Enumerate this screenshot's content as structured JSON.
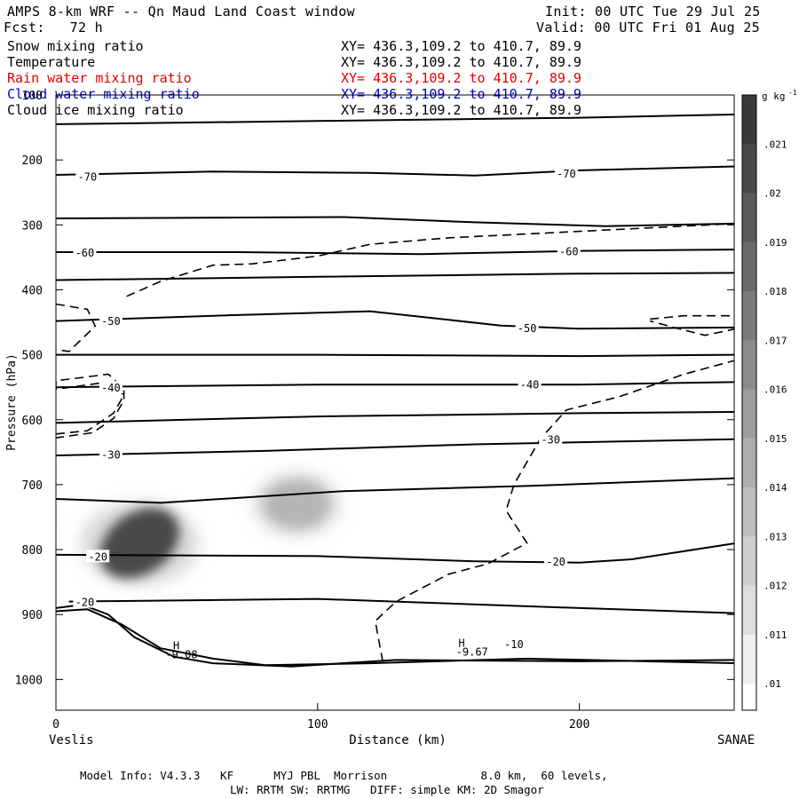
{
  "header": {
    "title": "AMPS 8-km WRF -- Qn Maud Land Coast window",
    "fcst": "Fcst:   72 h",
    "init": "Init: 00 UTC Tue 29 Jul 25",
    "valid": "Valid: 00 UTC Fri 01 Aug 25"
  },
  "fields": [
    {
      "name": "Snow mixing ratio",
      "xy": "XY= 436.3,109.2 to 410.7, 89.9",
      "color": "#000000"
    },
    {
      "name": "Temperature",
      "xy": "XY= 436.3,109.2 to 410.7, 89.9",
      "color": "#000000"
    },
    {
      "name": "Rain water mixing ratio",
      "xy": "XY= 436.3,109.2 to 410.7, 89.9",
      "color": "#e00000"
    },
    {
      "name": "Cloud water mixing ratio",
      "xy": "XY= 436.3,109.2 to 410.7, 89.9",
      "color": "#0000cc"
    },
    {
      "name": "Cloud ice mixing ratio",
      "xy": "XY= 436.3,109.2 to 410.7, 89.9",
      "color": "#000000"
    }
  ],
  "footer": {
    "line1": "Model Info: V4.3.3   KF      MYJ PBL  Morrison              8.0 km,  60 levels,",
    "line2": "LW: RRTM SW: RRTMG   DIFF: simple KM: 2D Smagor"
  },
  "chart_data": {
    "type": "cross-section",
    "xlabel": "Distance (km)",
    "ylabel": "Pressure (hPa)",
    "x_left_label": "Veslis",
    "x_right_label": "SANAE",
    "xlim": [
      0,
      260
    ],
    "ylim": [
      1050,
      100
    ],
    "x_ticks": [
      0,
      100,
      200
    ],
    "y_ticks": [
      100,
      200,
      300,
      400,
      500,
      600,
      700,
      800,
      900,
      1000
    ],
    "colorbar": {
      "unit": "g kg",
      "unit_exp": "-1",
      "labels": [
        ".021",
        ".02",
        ".019",
        ".018",
        ".017",
        ".016",
        ".015",
        ".014",
        ".013",
        ".012",
        ".011",
        ".01"
      ]
    },
    "temperature_contour_labels": [
      {
        "value": "-70",
        "x": 12,
        "p": 225
      },
      {
        "value": "-70",
        "x": 195,
        "p": 220
      },
      {
        "value": "-60",
        "x": 11,
        "p": 342
      },
      {
        "value": "-60",
        "x": 196,
        "p": 340
      },
      {
        "value": "-50",
        "x": 21,
        "p": 447
      },
      {
        "value": "-50",
        "x": 180,
        "p": 458
      },
      {
        "value": "-40",
        "x": 21,
        "p": 550
      },
      {
        "value": "-40",
        "x": 181,
        "p": 545
      },
      {
        "value": "-30",
        "x": 21,
        "p": 653
      },
      {
        "value": "-30",
        "x": 189,
        "p": 630
      },
      {
        "value": "-20",
        "x": 16,
        "p": 810
      },
      {
        "value": "-20",
        "x": 191,
        "p": 818
      },
      {
        "value": "-20",
        "x": 11,
        "p": 880
      }
    ],
    "annotations": [
      {
        "text": "H",
        "x": 46,
        "p": 948
      },
      {
        "text": "-9.08",
        "x": 48,
        "p": 962
      },
      {
        "text": "H",
        "x": 155,
        "p": 944
      },
      {
        "text": "-9.67",
        "x": 159,
        "p": 958
      },
      {
        "text": "-10",
        "x": 175,
        "p": 946
      }
    ],
    "isotherms": [
      {
        "level": -75,
        "points": [
          [
            0,
            145
          ],
          [
            100,
            140
          ],
          [
            200,
            135
          ],
          [
            260,
            130
          ]
        ]
      },
      {
        "level": -70,
        "points": [
          [
            0,
            223
          ],
          [
            60,
            218
          ],
          [
            120,
            220
          ],
          [
            160,
            224
          ],
          [
            200,
            216
          ],
          [
            260,
            210
          ]
        ]
      },
      {
        "level": -65,
        "points": [
          [
            0,
            290
          ],
          [
            110,
            288
          ],
          [
            160,
            296
          ],
          [
            210,
            302
          ],
          [
            260,
            298
          ]
        ]
      },
      {
        "level": -60,
        "points": [
          [
            0,
            342
          ],
          [
            70,
            342
          ],
          [
            140,
            345
          ],
          [
            200,
            340
          ],
          [
            260,
            338
          ]
        ]
      },
      {
        "level": -55,
        "points": [
          [
            0,
            385
          ],
          [
            100,
            380
          ],
          [
            200,
            375
          ],
          [
            260,
            374
          ]
        ]
      },
      {
        "level": -50,
        "points": [
          [
            0,
            448
          ],
          [
            60,
            440
          ],
          [
            120,
            433
          ],
          [
            170,
            455
          ],
          [
            200,
            460
          ],
          [
            260,
            458
          ]
        ]
      },
      {
        "level": -45,
        "points": [
          [
            0,
            500
          ],
          [
            100,
            500
          ],
          [
            200,
            502
          ],
          [
            260,
            500
          ]
        ]
      },
      {
        "level": -40,
        "points": [
          [
            0,
            550
          ],
          [
            100,
            546
          ],
          [
            200,
            546
          ],
          [
            260,
            542
          ]
        ]
      },
      {
        "level": -35,
        "points": [
          [
            0,
            605
          ],
          [
            100,
            595
          ],
          [
            200,
            590
          ],
          [
            260,
            588
          ]
        ]
      },
      {
        "level": -30,
        "points": [
          [
            0,
            655
          ],
          [
            80,
            648
          ],
          [
            160,
            638
          ],
          [
            260,
            630
          ]
        ]
      },
      {
        "level": -25,
        "points": [
          [
            0,
            722
          ],
          [
            40,
            728
          ],
          [
            110,
            710
          ],
          [
            180,
            702
          ],
          [
            260,
            690
          ]
        ]
      },
      {
        "level": -20,
        "points": [
          [
            0,
            808
          ],
          [
            100,
            810
          ],
          [
            160,
            818
          ],
          [
            200,
            820
          ],
          [
            220,
            815
          ],
          [
            260,
            790
          ]
        ]
      },
      {
        "level": -15,
        "points": [
          [
            5,
            880
          ],
          [
            100,
            876
          ],
          [
            200,
            890
          ],
          [
            260,
            898
          ]
        ]
      },
      {
        "level": -12,
        "points": [
          [
            0,
            890
          ],
          [
            10,
            885
          ],
          [
            20,
            900
          ],
          [
            30,
            935
          ],
          [
            45,
            965
          ],
          [
            60,
            975
          ],
          [
            90,
            980
          ],
          [
            130,
            970
          ],
          [
            200,
            972
          ],
          [
            260,
            970
          ]
        ]
      },
      {
        "level": -11,
        "points": [
          [
            0,
            895
          ],
          [
            12,
            892
          ],
          [
            25,
            915
          ],
          [
            40,
            952
          ],
          [
            60,
            968
          ],
          [
            80,
            978
          ],
          [
            120,
            975
          ],
          [
            180,
            968
          ],
          [
            260,
            975
          ]
        ]
      }
    ],
    "cloud_ice_contour": {
      "points": [
        [
          0,
          622
        ],
        [
          12,
          617
        ],
        [
          22,
          590
        ],
        [
          26,
          562
        ],
        [
          20,
          542
        ],
        [
          0,
          553
        ],
        [
          0,
          540
        ],
        [
          20,
          530
        ],
        [
          26,
          552
        ],
        [
          26,
          570
        ],
        [
          22,
          598
        ],
        [
          14,
          620
        ],
        [
          0,
          628
        ]
      ]
    },
    "cloud_ice_contours_extra": [
      {
        "points": [
          [
            0,
            422
          ],
          [
            12,
            430
          ],
          [
            15,
            456
          ],
          [
            5,
            495
          ],
          [
            0,
            492
          ]
        ]
      },
      {
        "points": [
          [
            27,
            410
          ],
          [
            40,
            387
          ],
          [
            60,
            362
          ],
          [
            75,
            360
          ],
          [
            100,
            348
          ],
          [
            120,
            330
          ],
          [
            150,
            320
          ],
          [
            200,
            310
          ],
          [
            260,
            298
          ]
        ]
      },
      {
        "points": [
          [
            227,
            445
          ],
          [
            240,
            440
          ],
          [
            260,
            440
          ],
          [
            260,
            460
          ],
          [
            248,
            470
          ],
          [
            240,
            462
          ],
          [
            227,
            448
          ]
        ]
      },
      {
        "points": [
          [
            260,
            508
          ],
          [
            240,
            530
          ],
          [
            215,
            565
          ],
          [
            195,
            585
          ],
          [
            185,
            630
          ],
          [
            175,
            700
          ],
          [
            172,
            740
          ],
          [
            180,
            790
          ],
          [
            165,
            822
          ],
          [
            150,
            838
          ],
          [
            130,
            880
          ],
          [
            122,
            910
          ],
          [
            125,
            975
          ]
        ]
      }
    ],
    "snow_blobs": [
      {
        "x": 32,
        "p": 790,
        "rx": 30,
        "ry": 85,
        "peak": 0.021,
        "label": "snow-max-core"
      },
      {
        "x": 92,
        "p": 730,
        "rx": 22,
        "ry": 65,
        "peak": 0.014,
        "label": "snow-secondary"
      }
    ]
  }
}
